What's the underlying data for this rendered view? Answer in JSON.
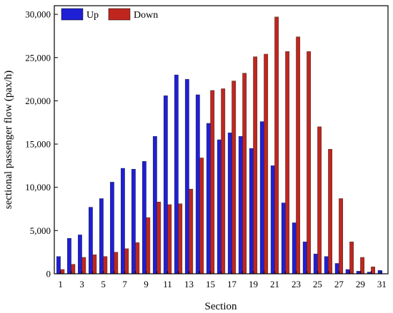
{
  "chart_data": {
    "type": "bar",
    "xlabel": "Section",
    "ylabel": "sectional passenger  flow (pax/h)",
    "ylim": [
      0,
      31000
    ],
    "yticks": [
      0,
      5000,
      10000,
      15000,
      20000,
      25000,
      30000
    ],
    "ytick_labels": [
      "0",
      "5,000",
      "10,000",
      "15,000",
      "20,000",
      "25,000",
      "30,000"
    ],
    "categories": [
      "1",
      "2",
      "3",
      "4",
      "5",
      "6",
      "7",
      "8",
      "9",
      "10",
      "11",
      "12",
      "13",
      "14",
      "15",
      "16",
      "17",
      "18",
      "19",
      "20",
      "21",
      "22",
      "23",
      "24",
      "25",
      "26",
      "27",
      "28",
      "29",
      "30",
      "31"
    ],
    "xtick_labels": [
      "1",
      "",
      "3",
      "",
      "5",
      "",
      "7",
      "",
      "9",
      "",
      "11",
      "",
      "13",
      "",
      "15",
      "",
      "17",
      "",
      "19",
      "",
      "21",
      "",
      "23",
      "",
      "25",
      "",
      "27",
      "",
      "29",
      "",
      "31"
    ],
    "legend_position": "top-left",
    "grid": false,
    "series": [
      {
        "name": "Up",
        "color": "#1f1fd6",
        "values": [
          2000,
          4100,
          4500,
          7700,
          8700,
          10600,
          12200,
          12100,
          13000,
          15900,
          20600,
          23000,
          22500,
          20700,
          17400,
          15500,
          16300,
          15900,
          14500,
          17600,
          12500,
          8200,
          5900,
          3700,
          2300,
          2000,
          1200,
          500,
          300,
          200,
          400
        ]
      },
      {
        "name": "Down",
        "color": "#c0261e",
        "values": [
          500,
          1100,
          1900,
          2200,
          2000,
          2500,
          2900,
          3600,
          6500,
          8300,
          8000,
          8100,
          9800,
          13400,
          21200,
          21400,
          22300,
          23200,
          25100,
          25400,
          29700,
          25700,
          27400,
          25700,
          17000,
          14400,
          8700,
          3700,
          1900,
          800,
          0
        ]
      }
    ]
  }
}
